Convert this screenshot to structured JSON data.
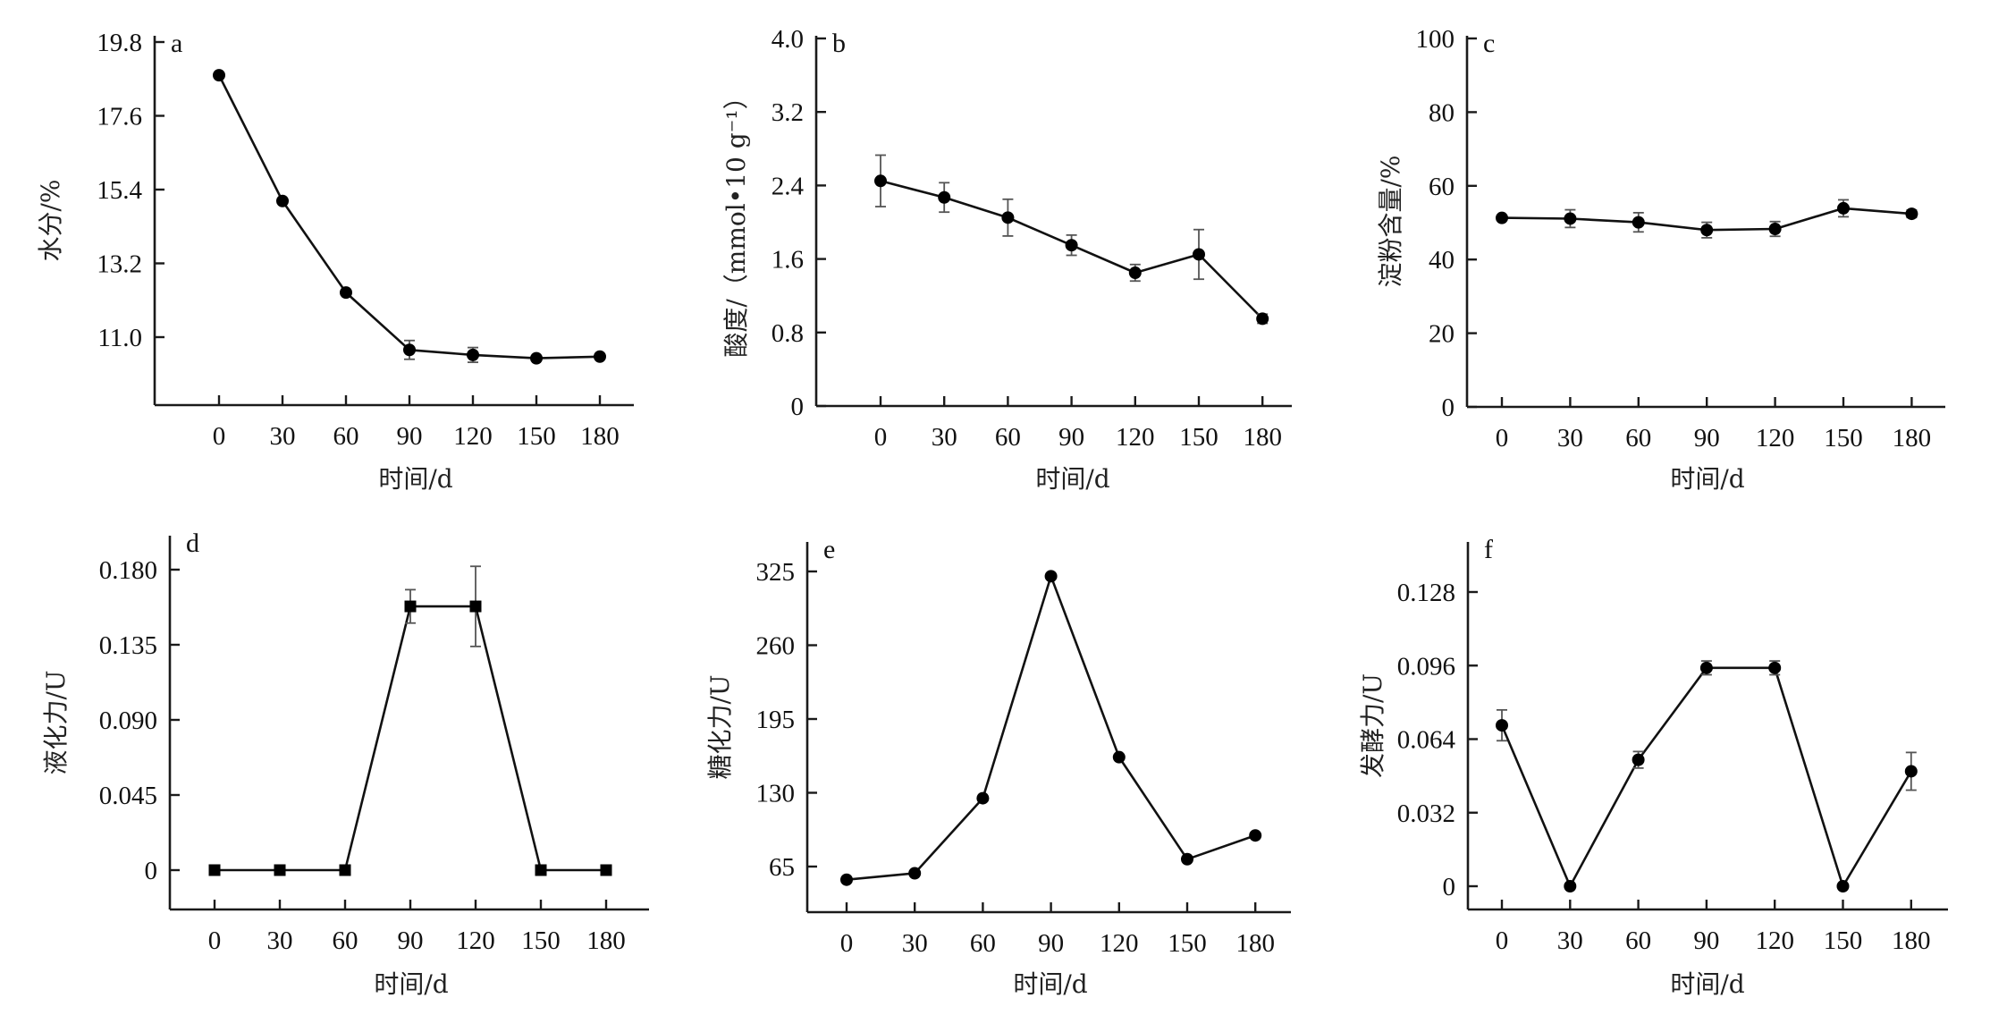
{
  "chart_data": [
    {
      "id": "a",
      "type": "line",
      "panel_label": "a",
      "title": "",
      "xlabel": "时间/d",
      "ylabel": "水分/%",
      "x": [
        0,
        30,
        60,
        90,
        120,
        150,
        180
      ],
      "x_ticks": [
        "0",
        "30",
        "60",
        "90",
        "120",
        "150",
        "180"
      ],
      "y_ticks": [
        "11.0",
        "13.2",
        "15.4",
        "17.6",
        "19.8"
      ],
      "y_tick_values": [
        11.0,
        13.2,
        15.4,
        17.6,
        19.8
      ],
      "ylim": [
        8.8,
        20.0
      ],
      "marker": "circle",
      "grid": false,
      "series": [
        {
          "name": "水分",
          "values": [
            18.81,
            15.06,
            12.33,
            10.62,
            10.47,
            10.37,
            10.42
          ],
          "errors": [
            0,
            0,
            0,
            0.28,
            0.22,
            0,
            0
          ]
        }
      ]
    },
    {
      "id": "b",
      "type": "line",
      "panel_label": "b",
      "title": "",
      "xlabel": "时间/d",
      "ylabel": "酸度/（mmol•10 g⁻¹）",
      "x": [
        0,
        30,
        60,
        90,
        120,
        150,
        180
      ],
      "x_ticks": [
        "0",
        "30",
        "60",
        "90",
        "120",
        "150",
        "180"
      ],
      "y_ticks": [
        "0",
        "0.8",
        "1.6",
        "2.4",
        "3.2",
        "4.0"
      ],
      "y_tick_values": [
        0,
        0.8,
        1.6,
        2.4,
        3.2,
        4.0
      ],
      "ylim": [
        0,
        4.0
      ],
      "marker": "circle",
      "grid": false,
      "series": [
        {
          "name": "酸度",
          "values": [
            2.45,
            2.27,
            2.05,
            1.75,
            1.45,
            1.65,
            0.95
          ],
          "errors": [
            0.28,
            0.16,
            0.2,
            0.11,
            0.09,
            0.27,
            0.05
          ]
        }
      ]
    },
    {
      "id": "c",
      "type": "line",
      "panel_label": "c",
      "title": "",
      "xlabel": "时间/d",
      "ylabel": "淀粉含量/%",
      "x": [
        0,
        30,
        60,
        90,
        120,
        150,
        180
      ],
      "x_ticks": [
        "0",
        "30",
        "60",
        "90",
        "120",
        "150",
        "180"
      ],
      "y_ticks": [
        "0",
        "20",
        "40",
        "60",
        "80",
        "100"
      ],
      "y_tick_values": [
        0,
        20,
        40,
        60,
        80,
        100
      ],
      "ylim": [
        0,
        100
      ],
      "marker": "circle",
      "grid": false,
      "series": [
        {
          "name": "淀粉含量",
          "values": [
            51.3,
            51.1,
            50.1,
            48.0,
            48.3,
            53.9,
            52.4
          ],
          "errors": [
            0.6,
            2.4,
            2.6,
            2.1,
            2.0,
            2.3,
            1.0
          ]
        }
      ]
    },
    {
      "id": "d",
      "type": "line",
      "panel_label": "d",
      "title": "",
      "xlabel": "时间/d",
      "ylabel": "液化力/U",
      "x": [
        0,
        30,
        60,
        90,
        120,
        150,
        180
      ],
      "x_ticks": [
        "0",
        "30",
        "60",
        "90",
        "120",
        "150",
        "180"
      ],
      "y_ticks": [
        "0",
        "0.045",
        "0.090",
        "0.135",
        "0.180"
      ],
      "y_tick_values": [
        0,
        0.045,
        0.09,
        0.135,
        0.18
      ],
      "ylim": [
        -0.025,
        0.2
      ],
      "marker": "square",
      "grid": false,
      "series": [
        {
          "name": "液化力",
          "values": [
            0,
            0,
            0,
            0.158,
            0.158,
            0,
            0
          ],
          "errors": [
            0,
            0,
            0,
            0.01,
            0.024,
            0,
            0
          ]
        }
      ]
    },
    {
      "id": "e",
      "type": "line",
      "panel_label": "e",
      "title": "",
      "xlabel": "时间/d",
      "ylabel": "糖化力/U",
      "x": [
        0,
        30,
        60,
        90,
        120,
        150,
        180
      ],
      "x_ticks": [
        "0",
        "30",
        "60",
        "90",
        "120",
        "150",
        "180"
      ],
      "y_ticks": [
        "65",
        "130",
        "195",
        "260",
        "325"
      ],
      "y_tick_values": [
        65,
        130,
        195,
        260,
        325
      ],
      "ylim": [
        24,
        350
      ],
      "marker": "circle",
      "grid": false,
      "series": [
        {
          "name": "糖化力",
          "values": [
            53.4,
            59.1,
            125.2,
            320.8,
            161.4,
            71.5,
            92.4
          ],
          "errors": [
            0,
            0,
            0,
            0,
            0,
            0,
            0
          ]
        }
      ]
    },
    {
      "id": "f",
      "type": "line",
      "panel_label": "f",
      "title": "",
      "xlabel": "时间/d",
      "ylabel": "发酵力/U",
      "x": [
        0,
        30,
        60,
        90,
        120,
        150,
        180
      ],
      "x_ticks": [
        "0",
        "30",
        "60",
        "90",
        "120",
        "150",
        "180"
      ],
      "y_ticks": [
        "0",
        "0.032",
        "0.064",
        "0.096",
        "0.128"
      ],
      "y_tick_values": [
        0,
        0.032,
        0.064,
        0.096,
        0.128
      ],
      "ylim": [
        -0.01,
        0.15
      ],
      "marker": "circle",
      "grid": false,
      "series": [
        {
          "name": "发酵力",
          "values": [
            0.07,
            0,
            0.055,
            0.095,
            0.095,
            0,
            0.05
          ],
          "errors": [
            0.0067,
            0,
            0.0036,
            0.003,
            0.003,
            0,
            0.0082
          ]
        }
      ]
    }
  ]
}
